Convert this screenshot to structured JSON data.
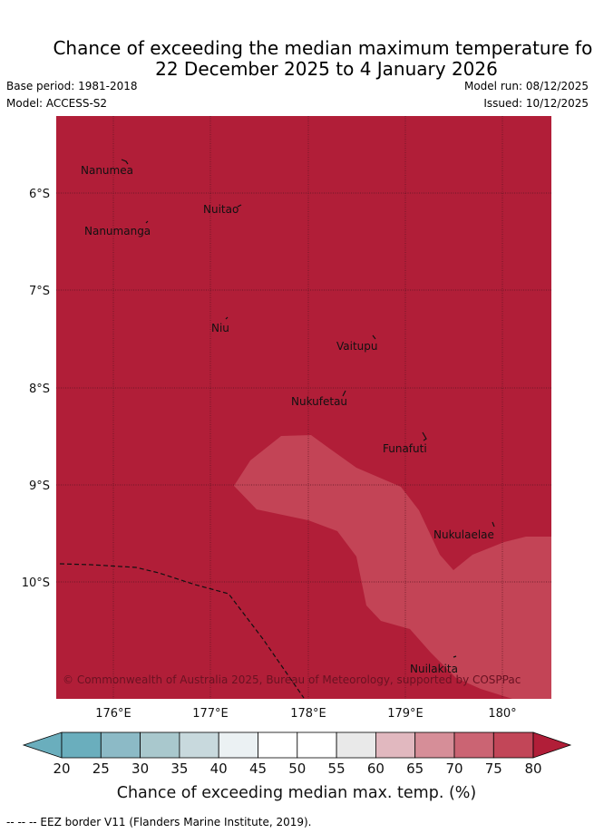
{
  "title": {
    "line1": "Chance of exceeding the median maximum temperature for",
    "line2": "22 December 2025 to 4 January 2026"
  },
  "meta": {
    "base_period": "Base period: 1981-2018",
    "model": "Model: ACCESS-S2",
    "model_run": "Model run: 08/12/2025",
    "issued": "Issued: 10/12/2025"
  },
  "map": {
    "lat_labels": [
      "6°S",
      "7°S",
      "8°S",
      "9°S",
      "10°S"
    ],
    "lon_labels": [
      "176°E",
      "177°E",
      "178°E",
      "179°E",
      "180°"
    ],
    "islands": [
      "Nanumea",
      "Nuitao",
      "Nanumanga",
      "Niu",
      "Vaitupu",
      "Nukufetau",
      "Funafuti",
      "Nukulaelae",
      "Nuilakita"
    ],
    "copyright": "© Commonwealth of Australia 2025, Bureau of Meteorology, supported by COSPPac",
    "colors": {
      "base": "#b11e38",
      "region": "#c34456"
    }
  },
  "colorbar": {
    "ticks": [
      "20",
      "25",
      "30",
      "35",
      "40",
      "45",
      "50",
      "55",
      "60",
      "65",
      "70",
      "75",
      "80"
    ],
    "colors": [
      "#6aaebd",
      "#8cbac6",
      "#a9c8cd",
      "#c8d9dd",
      "#ebf1f3",
      "#ffffff",
      "#ffffff",
      "#e9e9e9",
      "#e1b8bf",
      "#d68e98",
      "#cb6473",
      "#c24658",
      "#b11e38"
    ],
    "label": "Chance of exceeding median max. temp. (%)"
  },
  "footer": "--  --  -- EEZ border V11 (Flanders Marine Institute, 2019)."
}
